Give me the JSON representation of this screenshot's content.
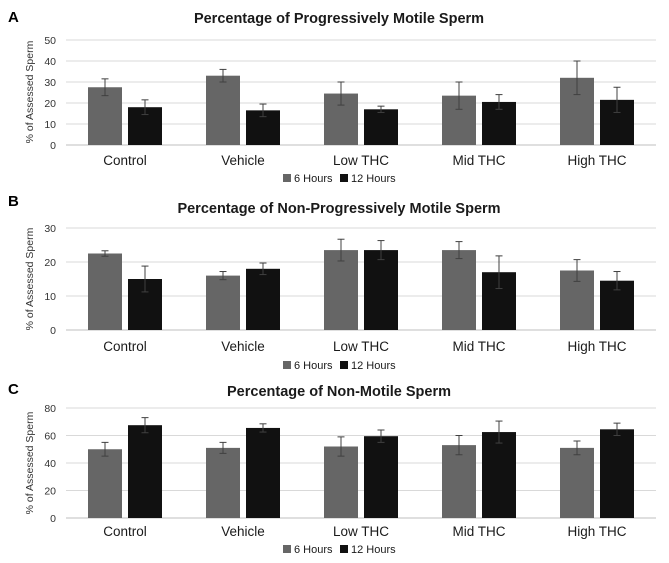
{
  "series_names": [
    "6 Hours",
    "12 Hours"
  ],
  "colors": {
    "series_6h": "#666666",
    "series_12h": "#111111"
  },
  "chart_data": [
    {
      "panel": "A",
      "type": "bar",
      "title": "Percentage of Progressively Motile Sperm",
      "ylabel": "% of Assessed Sperm",
      "ylim": [
        0,
        50
      ],
      "yticks": [
        0,
        10,
        20,
        30,
        40,
        50
      ],
      "grid": true,
      "legend": "bottom-center",
      "categories": [
        "Control",
        "Vehicle",
        "Low THC",
        "Mid THC",
        "High THC"
      ],
      "series": [
        {
          "name": "6 Hours",
          "values": [
            27.5,
            33,
            24.5,
            23.5,
            32
          ],
          "errors": [
            4,
            3,
            5.5,
            6.5,
            8
          ]
        },
        {
          "name": "12 Hours",
          "values": [
            18,
            16.5,
            17,
            20.5,
            21.5
          ],
          "errors": [
            3.5,
            3,
            1.5,
            3.5,
            6
          ]
        }
      ]
    },
    {
      "panel": "B",
      "type": "bar",
      "title": "Percentage of Non-Progressively Motile Sperm",
      "ylabel": "% of Assessed Sperm",
      "ylim": [
        0,
        30
      ],
      "yticks": [
        0,
        10,
        20,
        30
      ],
      "grid": true,
      "legend": "bottom-center",
      "categories": [
        "Control",
        "Vehicle",
        "Low THC",
        "Mid THC",
        "High THC"
      ],
      "series": [
        {
          "name": "6 Hours",
          "values": [
            22.5,
            16,
            23.5,
            23.5,
            17.5
          ],
          "errors": [
            0.8,
            1.2,
            3.2,
            2.5,
            3.2
          ]
        },
        {
          "name": "12 Hours",
          "values": [
            15,
            18,
            23.5,
            17,
            14.5
          ],
          "errors": [
            3.8,
            1.7,
            2.8,
            4.8,
            2.7
          ]
        }
      ]
    },
    {
      "panel": "C",
      "type": "bar",
      "title": "Percentage of Non-Motile Sperm",
      "ylabel": "% of Assessed Sperm",
      "ylim": [
        0,
        80
      ],
      "yticks": [
        0,
        20,
        40,
        60,
        80
      ],
      "grid": true,
      "legend": "bottom-center",
      "categories": [
        "Control",
        "Vehicle",
        "Low THC",
        "Mid THC",
        "High THC"
      ],
      "series": [
        {
          "name": "6 Hours",
          "values": [
            50,
            51,
            52,
            53,
            51
          ],
          "errors": [
            5,
            4,
            7,
            7,
            5
          ]
        },
        {
          "name": "12 Hours",
          "values": [
            67.5,
            65.5,
            59.5,
            62.5,
            64.5
          ],
          "errors": [
            5.5,
            3,
            4.5,
            8,
            4.5
          ]
        }
      ]
    }
  ]
}
